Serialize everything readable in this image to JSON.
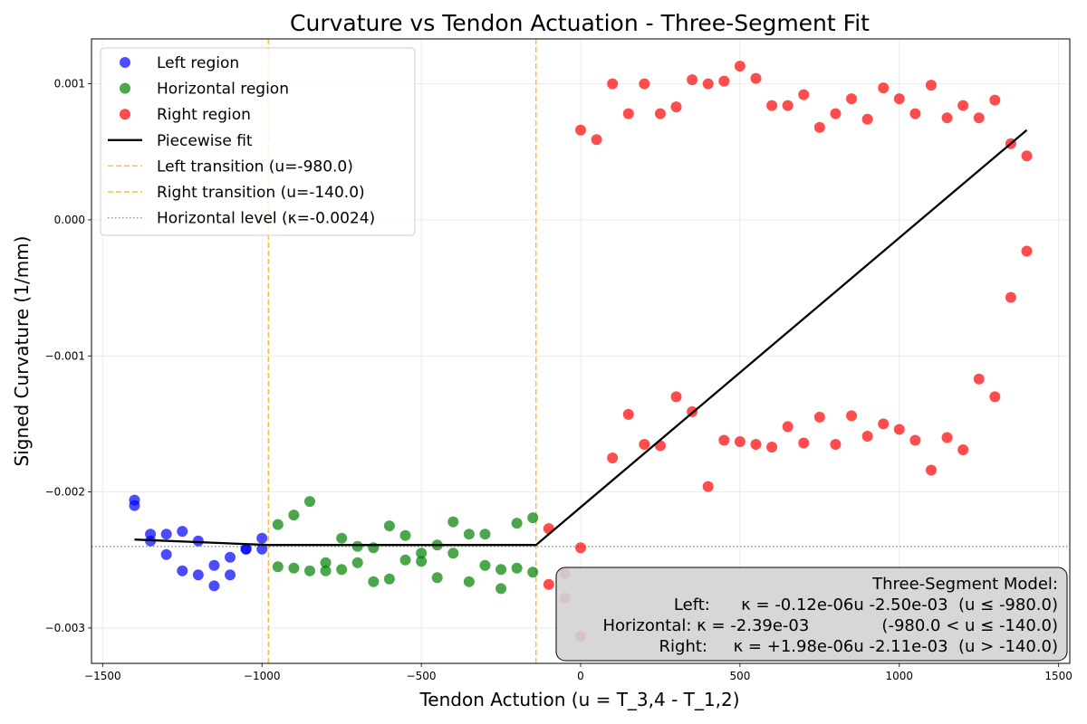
{
  "chart_data": {
    "type": "scatter",
    "title": "Curvature vs Tendon Actuation - Three-Segment Fit",
    "xlabel": "Tendon Actution (u = T_3,4 - T_1,2)",
    "ylabel": "Signed Curvature (1/mm)",
    "xlim": [
      -1535,
      1535
    ],
    "ylim": [
      -0.00326,
      0.00133
    ],
    "grid": true,
    "legend_position": "top-left",
    "x_ticks": [
      {
        "value": -1500,
        "label": "−1500"
      },
      {
        "value": -1000,
        "label": "−1000"
      },
      {
        "value": -500,
        "label": "−500"
      },
      {
        "value": 0,
        "label": "0"
      },
      {
        "value": 500,
        "label": "500"
      },
      {
        "value": 1000,
        "label": "1000"
      },
      {
        "value": 1500,
        "label": "1500"
      }
    ],
    "y_ticks": [
      {
        "value": -0.003,
        "label": "−0.003"
      },
      {
        "value": -0.002,
        "label": "−0.002"
      },
      {
        "value": -0.001,
        "label": "−0.001"
      },
      {
        "value": 0.0,
        "label": "0.000"
      },
      {
        "value": 0.001,
        "label": "0.001"
      }
    ],
    "series": [
      {
        "name": "Left region",
        "kind": "scatter",
        "color": "#0000ff",
        "points": [
          [
            -1400,
            -0.00206
          ],
          [
            -1400,
            -0.0021
          ],
          [
            -1350,
            -0.00231
          ],
          [
            -1350,
            -0.00236
          ],
          [
            -1300,
            -0.00231
          ],
          [
            -1300,
            -0.00246
          ],
          [
            -1250,
            -0.00229
          ],
          [
            -1250,
            -0.00258
          ],
          [
            -1200,
            -0.00236
          ],
          [
            -1200,
            -0.00261
          ],
          [
            -1150,
            -0.00254
          ],
          [
            -1150,
            -0.00269
          ],
          [
            -1100,
            -0.00248
          ],
          [
            -1100,
            -0.00261
          ],
          [
            -1050,
            -0.00242
          ],
          [
            -1050,
            -0.00242
          ],
          [
            -1000,
            -0.00234
          ],
          [
            -1000,
            -0.00242
          ]
        ]
      },
      {
        "name": "Horizontal region",
        "kind": "scatter",
        "color": "#008000",
        "points": [
          [
            -950,
            -0.00224
          ],
          [
            -950,
            -0.00255
          ],
          [
            -900,
            -0.00217
          ],
          [
            -900,
            -0.00256
          ],
          [
            -850,
            -0.00207
          ],
          [
            -850,
            -0.00258
          ],
          [
            -800,
            -0.00252
          ],
          [
            -800,
            -0.00258
          ],
          [
            -750,
            -0.00234
          ],
          [
            -750,
            -0.00257
          ],
          [
            -700,
            -0.0024
          ],
          [
            -700,
            -0.00252
          ],
          [
            -650,
            -0.00241
          ],
          [
            -650,
            -0.00266
          ],
          [
            -600,
            -0.00225
          ],
          [
            -600,
            -0.00264
          ],
          [
            -550,
            -0.00232
          ],
          [
            -550,
            -0.0025
          ],
          [
            -500,
            -0.00245
          ],
          [
            -500,
            -0.00251
          ],
          [
            -450,
            -0.00239
          ],
          [
            -450,
            -0.00263
          ],
          [
            -400,
            -0.00222
          ],
          [
            -400,
            -0.00245
          ],
          [
            -350,
            -0.00231
          ],
          [
            -350,
            -0.00266
          ],
          [
            -300,
            -0.00231
          ],
          [
            -300,
            -0.00254
          ],
          [
            -250,
            -0.00257
          ],
          [
            -250,
            -0.00271
          ],
          [
            -200,
            -0.00223
          ],
          [
            -200,
            -0.00256
          ],
          [
            -150,
            -0.00219
          ],
          [
            -150,
            -0.00259
          ]
        ]
      },
      {
        "name": "Right region",
        "kind": "scatter",
        "color": "#ff0000",
        "points": [
          [
            -100,
            -0.00227
          ],
          [
            -100,
            -0.00268
          ],
          [
            -50,
            -0.0026
          ],
          [
            -50,
            -0.00278
          ],
          [
            0,
            0.00066
          ],
          [
            0,
            -0.00241
          ],
          [
            0,
            -0.00306
          ],
          [
            50,
            0.00059
          ],
          [
            100,
            0.001
          ],
          [
            100,
            -0.00175
          ],
          [
            150,
            0.00078
          ],
          [
            150,
            -0.00143
          ],
          [
            200,
            0.001
          ],
          [
            200,
            -0.00165
          ],
          [
            250,
            0.00078
          ],
          [
            250,
            -0.00166
          ],
          [
            300,
            0.00083
          ],
          [
            300,
            -0.0013
          ],
          [
            350,
            0.00103
          ],
          [
            350,
            -0.00141
          ],
          [
            400,
            0.001
          ],
          [
            400,
            -0.00196
          ],
          [
            450,
            0.00102
          ],
          [
            450,
            -0.00162
          ],
          [
            500,
            0.00113
          ],
          [
            500,
            -0.00163
          ],
          [
            550,
            0.00104
          ],
          [
            550,
            -0.00165
          ],
          [
            600,
            0.00084
          ],
          [
            600,
            -0.00167
          ],
          [
            650,
            0.00084
          ],
          [
            650,
            -0.00152
          ],
          [
            700,
            0.00092
          ],
          [
            700,
            -0.00164
          ],
          [
            750,
            0.00068
          ],
          [
            750,
            -0.00145
          ],
          [
            800,
            0.00078
          ],
          [
            800,
            -0.00165
          ],
          [
            850,
            0.00089
          ],
          [
            850,
            -0.00144
          ],
          [
            900,
            0.00074
          ],
          [
            900,
            -0.00159
          ],
          [
            950,
            0.00097
          ],
          [
            950,
            -0.0015
          ],
          [
            1000,
            0.00089
          ],
          [
            1000,
            -0.00154
          ],
          [
            1050,
            0.00078
          ],
          [
            1050,
            -0.00162
          ],
          [
            1100,
            0.00099
          ],
          [
            1100,
            -0.00184
          ],
          [
            1150,
            0.00075
          ],
          [
            1150,
            -0.0016
          ],
          [
            1200,
            0.00084
          ],
          [
            1200,
            -0.00169
          ],
          [
            1250,
            0.00075
          ],
          [
            1250,
            -0.00117
          ],
          [
            1300,
            0.00088
          ],
          [
            1300,
            -0.0013
          ],
          [
            1350,
            0.00056
          ],
          [
            1350,
            -0.00057
          ],
          [
            1400,
            0.00047
          ],
          [
            1400,
            -0.00023
          ]
        ]
      },
      {
        "name": "Piecewise fit",
        "kind": "line",
        "color": "#000000",
        "dash": "solid",
        "points": [
          [
            -1400,
            -0.00235
          ],
          [
            -980,
            -0.00239
          ],
          [
            -140,
            -0.00239
          ],
          [
            1400,
            0.00066
          ]
        ]
      },
      {
        "name": "Left transition (u=-980.0)",
        "kind": "vline",
        "color": "#ffa500",
        "dash": "dashed",
        "x": -980
      },
      {
        "name": "Right transition (u=-140.0)",
        "kind": "vline",
        "color": "#ffa500",
        "dash": "dashed",
        "x": -140
      },
      {
        "name": "Horizontal level (κ=-0.0024)",
        "kind": "hline",
        "color": "#008000",
        "dash": "dotted",
        "y": -0.0024
      }
    ],
    "annotation": {
      "position": "bottom-right",
      "lines": [
        "Three-Segment Model:",
        "Left:      κ = -0.12e-06u -2.50e-03  (u ≤ -980.0)",
        "Horizontal: κ = -2.39e-03              (-980.0 < u ≤ -140.0)",
        "Right:     κ = +1.98e-06u -2.11e-03  (u > -140.0)"
      ]
    }
  }
}
